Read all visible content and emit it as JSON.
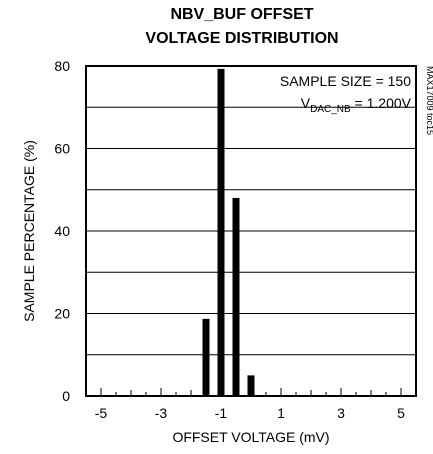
{
  "chart_data": {
    "type": "bar",
    "title_line1": "NBV_BUF OFFSET",
    "title_line2": "VOLTAGE DISTRIBUTION",
    "xlabel": "OFFSET VOLTAGE (mV)",
    "ylabel": "SAMPLE PERCENTAGE (%)",
    "xlim": [
      -5.5,
      5.5
    ],
    "ylim": [
      0,
      80
    ],
    "x_tick_labels": [
      "-5",
      "-3",
      "-1",
      "1",
      "3",
      "5"
    ],
    "y_tick_labels": [
      "0",
      "20",
      "40",
      "60",
      "80"
    ],
    "grid": "horizontal",
    "annotation_line1": "SAMPLE SIZE = 150",
    "annotation_v": "V",
    "annotation_sub": "DAC_NB",
    "annotation_rest": " = 1.200V",
    "part_number": "MAX17009 toc15",
    "bar_color": "#000000",
    "bars": [
      {
        "x": -1.5,
        "value": 18.7
      },
      {
        "x": -1.0,
        "value": 79.3
      },
      {
        "x": -0.5,
        "value": 48.0
      },
      {
        "x": 0.0,
        "value": 5.0
      }
    ]
  }
}
